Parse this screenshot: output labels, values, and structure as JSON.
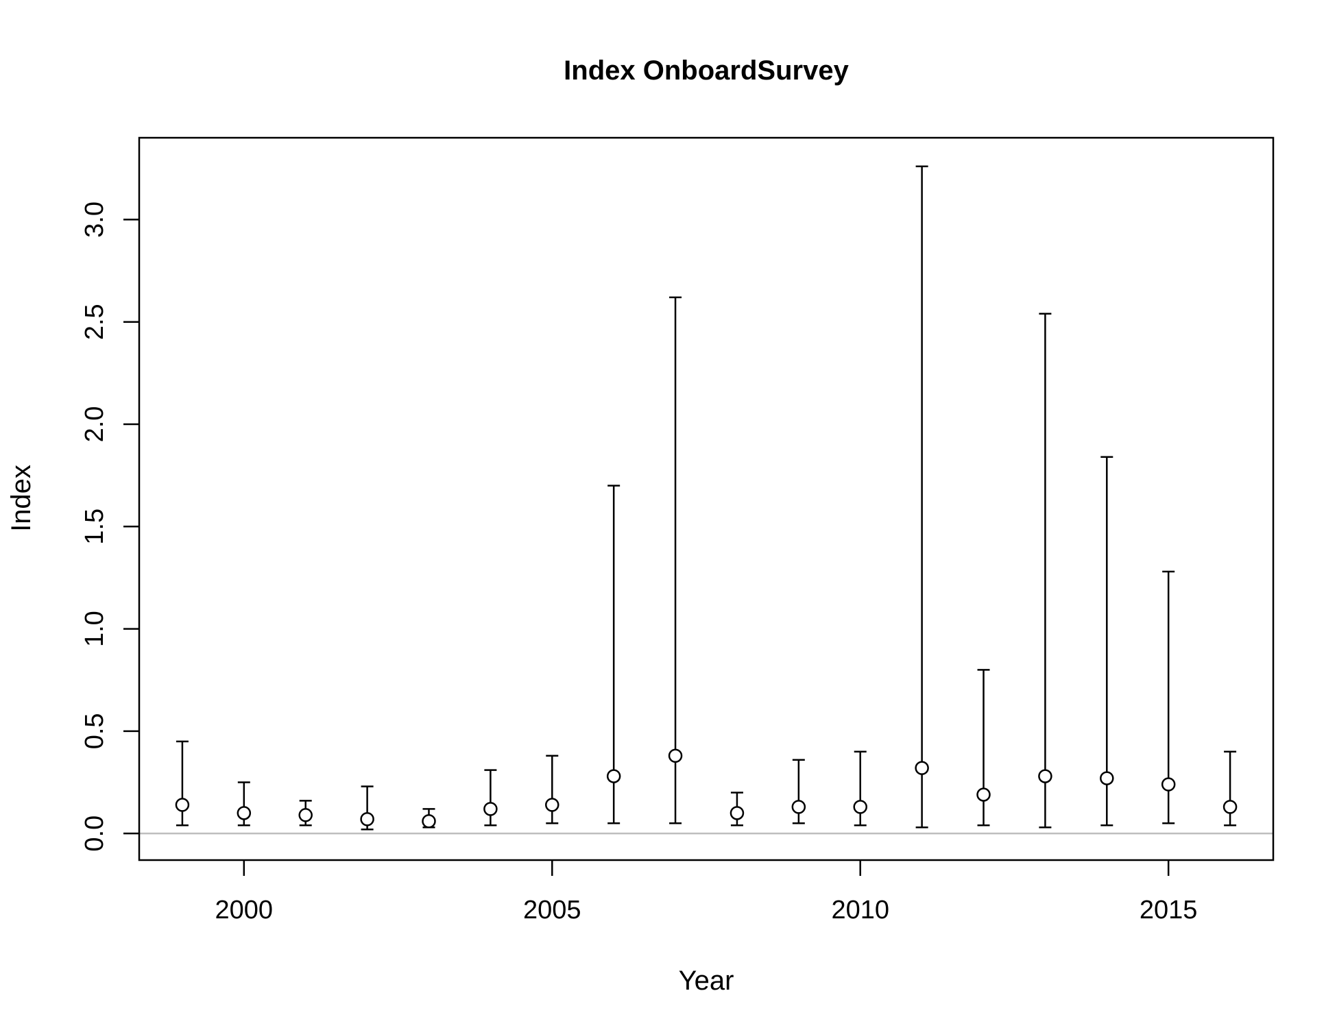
{
  "chart_data": {
    "type": "scatter",
    "title": "Index OnboardSurvey",
    "xlabel": "Year",
    "ylabel": "Index",
    "xlim": [
      1998.3,
      2016.7
    ],
    "ylim": [
      -0.13,
      3.4
    ],
    "xticks": [
      "2000",
      "2005",
      "2010",
      "2015"
    ],
    "yticks": [
      "0.0",
      "0.5",
      "1.0",
      "1.5",
      "2.0",
      "2.5",
      "3.0"
    ],
    "reference_line": {
      "y": 0.0,
      "color": "#bebebe"
    },
    "grid": false,
    "legend": "none",
    "series": [
      {
        "points": [
          {
            "x": 1999,
            "y": 0.14,
            "lower": 0.04,
            "upper": 0.45
          },
          {
            "x": 2000,
            "y": 0.1,
            "lower": 0.04,
            "upper": 0.25
          },
          {
            "x": 2001,
            "y": 0.09,
            "lower": 0.04,
            "upper": 0.16
          },
          {
            "x": 2002,
            "y": 0.07,
            "lower": 0.02,
            "upper": 0.23
          },
          {
            "x": 2003,
            "y": 0.06,
            "lower": 0.03,
            "upper": 0.12
          },
          {
            "x": 2004,
            "y": 0.12,
            "lower": 0.04,
            "upper": 0.31
          },
          {
            "x": 2005,
            "y": 0.14,
            "lower": 0.05,
            "upper": 0.38
          },
          {
            "x": 2006,
            "y": 0.28,
            "lower": 0.05,
            "upper": 1.7
          },
          {
            "x": 2007,
            "y": 0.38,
            "lower": 0.05,
            "upper": 2.62
          },
          {
            "x": 2008,
            "y": 0.1,
            "lower": 0.04,
            "upper": 0.2
          },
          {
            "x": 2009,
            "y": 0.13,
            "lower": 0.05,
            "upper": 0.36
          },
          {
            "x": 2010,
            "y": 0.13,
            "lower": 0.04,
            "upper": 0.4
          },
          {
            "x": 2011,
            "y": 0.32,
            "lower": 0.03,
            "upper": 3.26
          },
          {
            "x": 2012,
            "y": 0.19,
            "lower": 0.04,
            "upper": 0.8
          },
          {
            "x": 2013,
            "y": 0.28,
            "lower": 0.03,
            "upper": 2.54
          },
          {
            "x": 2014,
            "y": 0.27,
            "lower": 0.04,
            "upper": 1.84
          },
          {
            "x": 2015,
            "y": 0.24,
            "lower": 0.05,
            "upper": 1.28
          },
          {
            "x": 2016,
            "y": 0.13,
            "lower": 0.04,
            "upper": 0.4
          }
        ]
      }
    ]
  }
}
